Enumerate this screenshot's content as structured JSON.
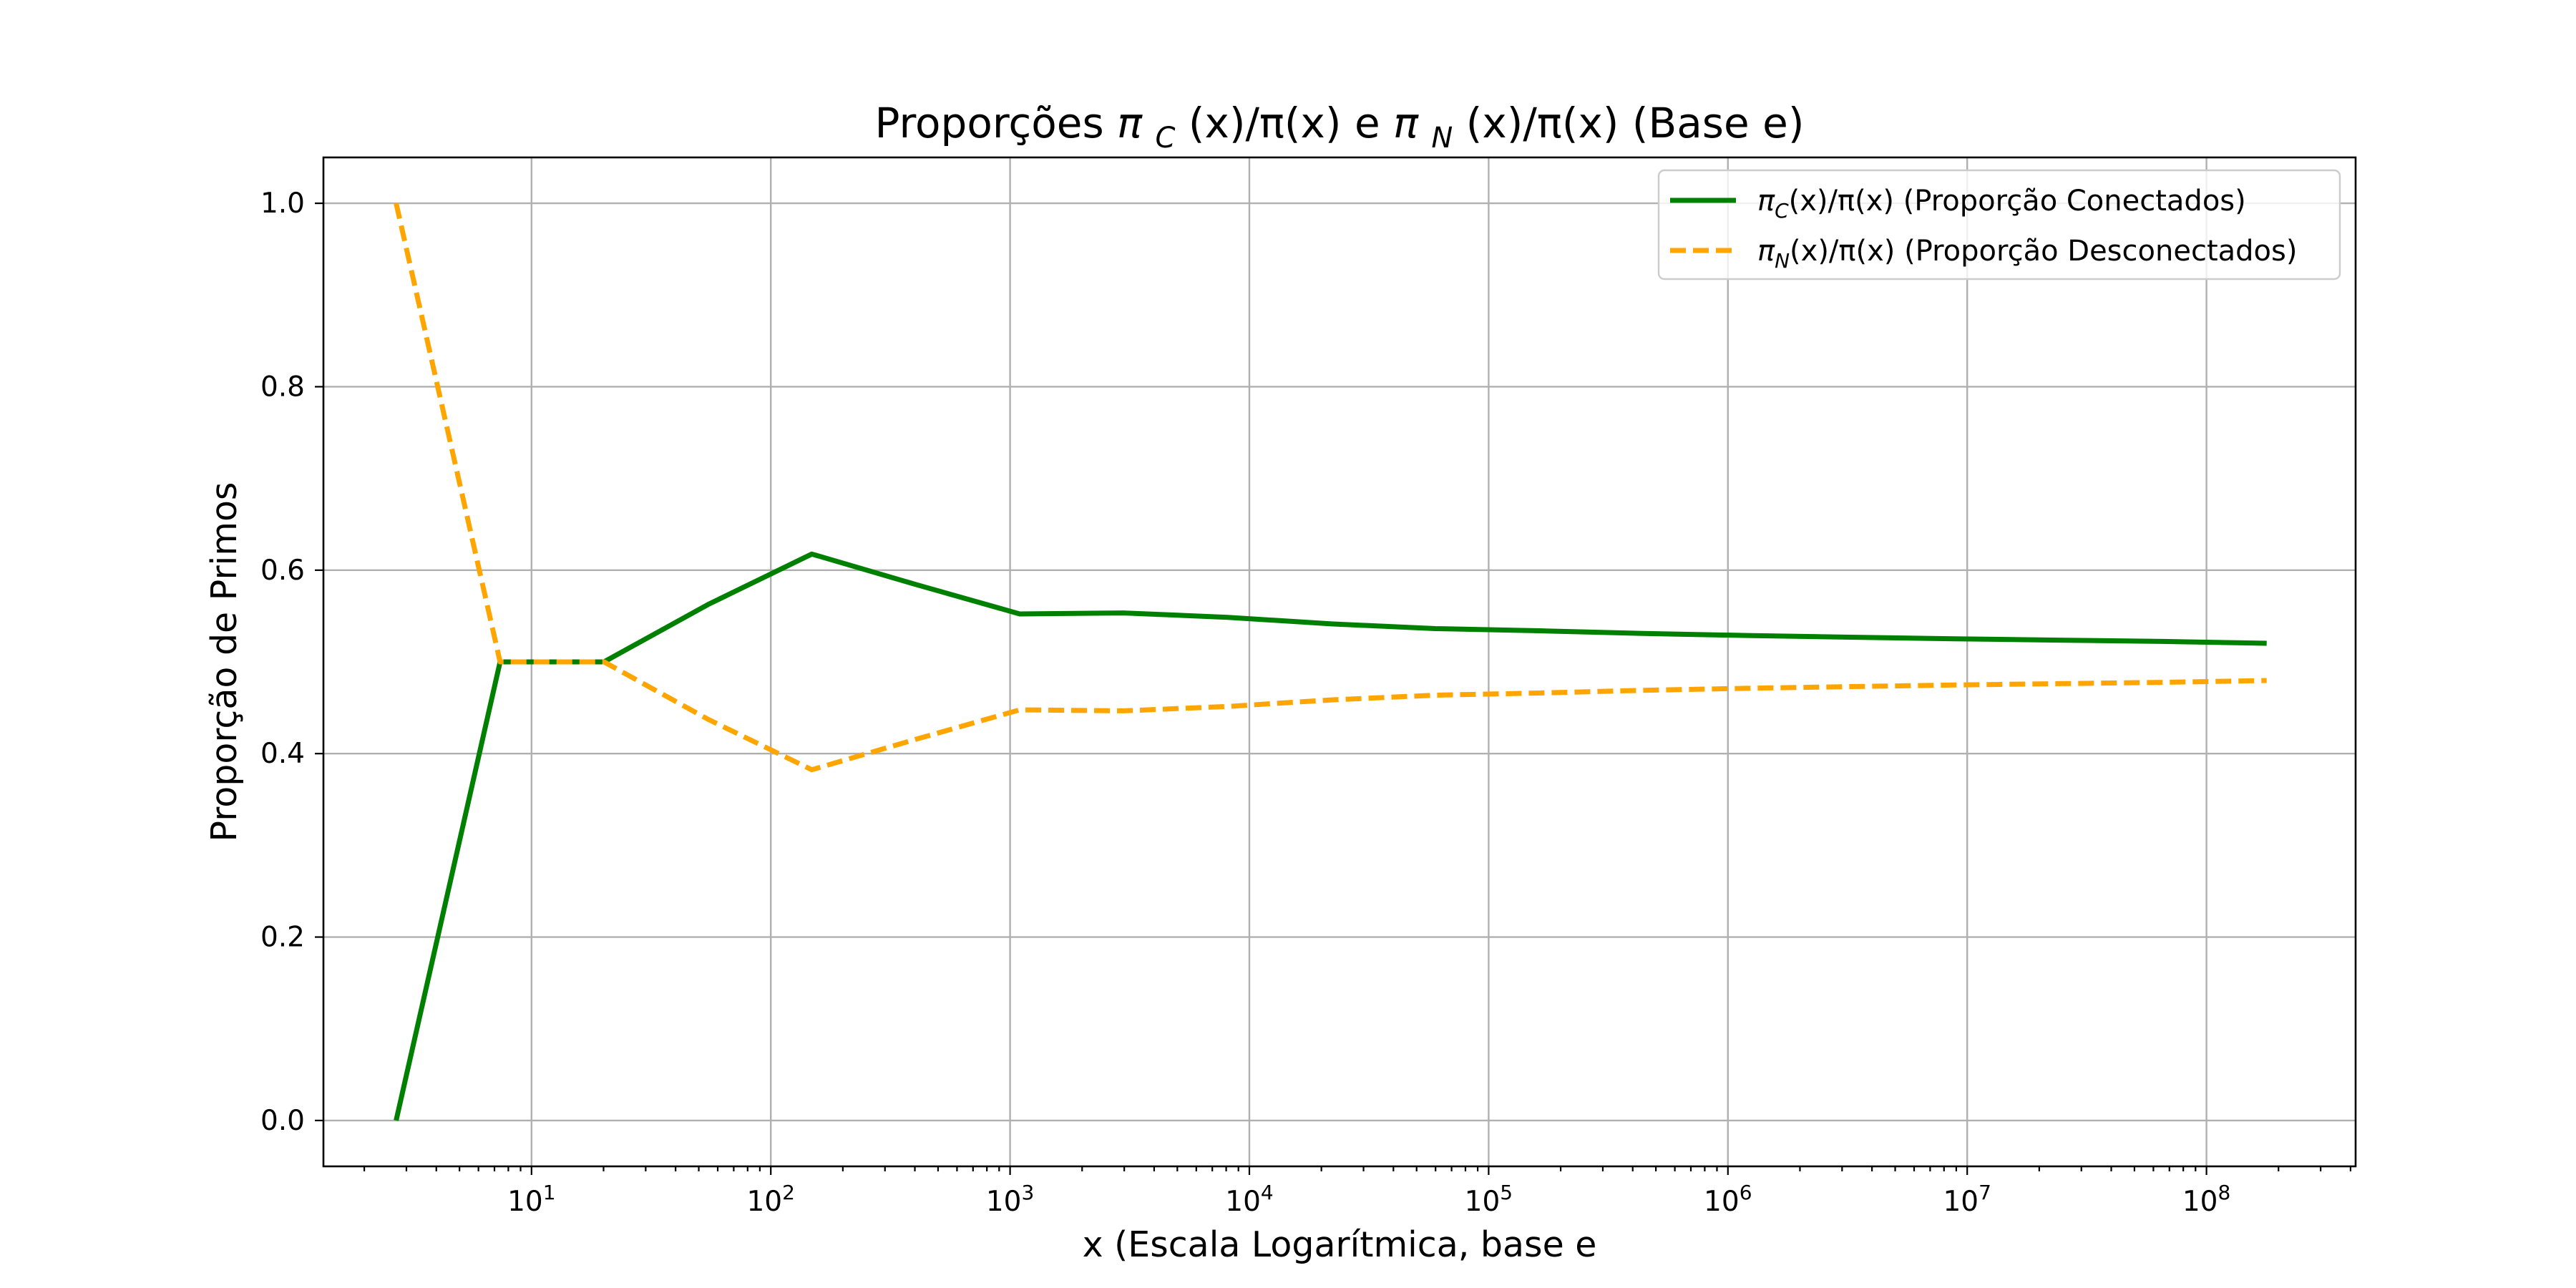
{
  "chart_data": {
    "type": "line",
    "title": "Proporções π_C(x)/π(x) e π_N(x)/π(x) (Base e)",
    "xlabel": "x (Escala Logarítmica, base e",
    "ylabel": "Proporção de Primos",
    "xscale": "log",
    "xlim": [
      1.35,
      420000000
    ],
    "ylim": [
      -0.05,
      1.05
    ],
    "grid": true,
    "legend_position": "top-right",
    "xticks": [
      {
        "value": 10,
        "base": "10",
        "exp": "1"
      },
      {
        "value": 100,
        "base": "10",
        "exp": "2"
      },
      {
        "value": 1000,
        "base": "10",
        "exp": "3"
      },
      {
        "value": 10000,
        "base": "10",
        "exp": "4"
      },
      {
        "value": 100000,
        "base": "10",
        "exp": "5"
      },
      {
        "value": 1000000,
        "base": "10",
        "exp": "6"
      },
      {
        "value": 10000000,
        "base": "10",
        "exp": "7"
      },
      {
        "value": 100000000,
        "base": "10",
        "exp": "8"
      }
    ],
    "yticks": [
      "0.0",
      "0.2",
      "0.4",
      "0.6",
      "0.8",
      "1.0"
    ],
    "x": [
      2.718,
      7.389,
      20.09,
      54.6,
      148.4,
      403.4,
      1097,
      2981,
      8103,
      22026,
      59874,
      162755,
      442413,
      1202604,
      3269017,
      8886111,
      24154953,
      65659969,
      178482301
    ],
    "series": [
      {
        "name": "π_C(x)/π(x) (Proporção Conectados)",
        "color": "#008000",
        "dash": "solid",
        "values": [
          0.0,
          0.5,
          0.5,
          0.5625,
          0.6176,
          0.5844,
          0.5523,
          0.5534,
          0.5486,
          0.5414,
          0.5363,
          0.5339,
          0.531,
          0.5288,
          0.5269,
          0.5252,
          0.5237,
          0.5223,
          0.5203
        ]
      },
      {
        "name": "π_N(x)/π(x) (Proporção Desconectados)",
        "color": "#ffa500",
        "dash": "dashed",
        "values": [
          1.0,
          0.5,
          0.5,
          0.4375,
          0.3824,
          0.4156,
          0.4477,
          0.4466,
          0.4514,
          0.4586,
          0.4637,
          0.4661,
          0.469,
          0.4712,
          0.4731,
          0.4748,
          0.4763,
          0.4777,
          0.4797
        ]
      }
    ]
  }
}
